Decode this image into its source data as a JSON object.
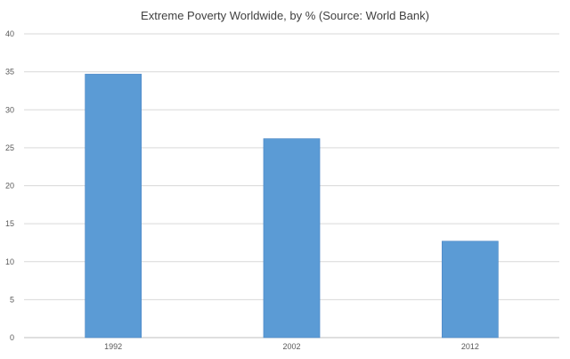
{
  "chart_data": {
    "type": "bar",
    "title": "Extreme Poverty Worldwide, by % (Source: World Bank)",
    "xlabel": "",
    "ylabel": "",
    "categories": [
      "1992",
      "2002",
      "2012"
    ],
    "values": [
      34.7,
      26.2,
      12.7
    ],
    "ylim": [
      0,
      40
    ],
    "yticks": [
      0,
      5,
      10,
      15,
      20,
      25,
      30,
      35,
      40
    ],
    "grid": true,
    "legend": "none",
    "colors": {
      "bar": "#5b9bd5",
      "grid": "#d9d9d9",
      "text": "#595959"
    }
  }
}
